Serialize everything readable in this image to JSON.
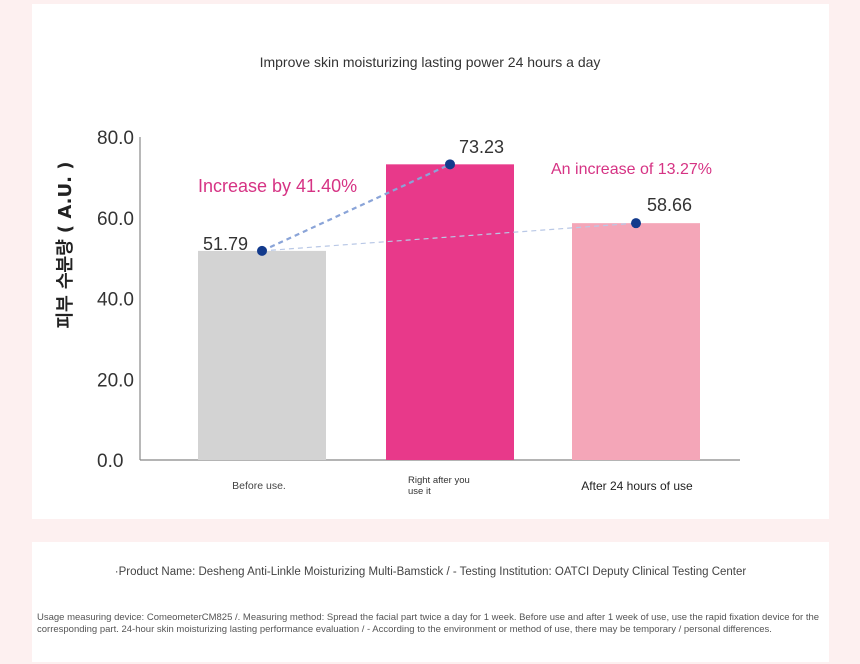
{
  "chart_data": {
    "type": "bar",
    "title": "Improve skin moisturizing lasting power 24 hours a day",
    "ylabel": "피부 수분량 ( A.U. )",
    "ylim": [
      0,
      80
    ],
    "yticks": [
      "0.0",
      "20.0",
      "40.0",
      "60.0",
      "80.0"
    ],
    "categories": [
      "Before use.",
      "Right after you use it",
      "After 24 hours of use"
    ],
    "values": [
      51.79,
      73.23,
      58.66
    ],
    "value_labels": [
      "51.79",
      "73.23",
      "58.66"
    ],
    "bar_colors": [
      "#d3d3d3",
      "#e8398a",
      "#f4a6b8"
    ],
    "annotations": [
      "Increase by 41.40%",
      "An increase of 13.27%"
    ],
    "annotation_color": "#d63384",
    "marker_color": "#123a8c"
  },
  "footer": {
    "product_line": "·Product Name: Desheng Anti-Linkle Moisturizing Multi-Bamstick / - Testing Institution: OATCI Deputy Clinical Testing Center",
    "method_line": "Usage measuring device: ComeometerCM825 /. Measuring method: Spread the facial part twice a day for 1 week. Before use and after 1 week of use, use the rapid fixation device for the corresponding part. 24-hour skin moisturizing lasting performance evaluation / - According to the environment or method of use, there may be temporary / personal differences."
  }
}
